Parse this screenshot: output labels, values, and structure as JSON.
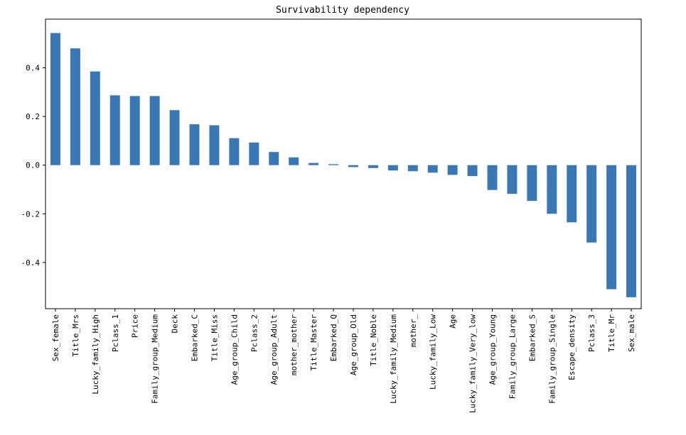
{
  "chart_data": {
    "type": "bar",
    "title": "Survivability dependency",
    "xlabel": "",
    "ylabel": "",
    "ylim": [
      -0.59,
      0.6
    ],
    "yticks": [
      -0.4,
      -0.2,
      0.0,
      0.2,
      0.4
    ],
    "ytick_labels": [
      "-0.4",
      "-0.2",
      "0.0",
      "0.2",
      "0.4"
    ],
    "bar_color": "#3a78b5",
    "categories": [
      "Sex_female",
      "Title_Mrs",
      "Lucky_family_High",
      "Pclass_1",
      "Price",
      "Family_group_Medium",
      "Deck",
      "Embarked_C",
      "Title_Miss",
      "Age_group_Child",
      "Pclass_2",
      "Age_group_Adult",
      "mother_mother",
      "Title_Master",
      "Embarked_Q",
      "Age_group_Old",
      "Title_Noble",
      "Lucky_family_Medium",
      "mother_",
      "Lucky_family_Low",
      "Age",
      "Lucky_family_Very_low",
      "Age_group_Young",
      "Family_group_Large",
      "Embarked_S",
      "Family_group_Single",
      "Escape_density",
      "Pclass_3",
      "Title_Mr",
      "Sex_male"
    ],
    "values": [
      0.543,
      0.48,
      0.385,
      0.287,
      0.284,
      0.284,
      0.226,
      0.168,
      0.164,
      0.111,
      0.093,
      0.054,
      0.032,
      0.009,
      0.004,
      -0.008,
      -0.012,
      -0.022,
      -0.025,
      -0.031,
      -0.04,
      -0.045,
      -0.102,
      -0.118,
      -0.147,
      -0.2,
      -0.235,
      -0.318,
      -0.51,
      -0.543
    ]
  }
}
